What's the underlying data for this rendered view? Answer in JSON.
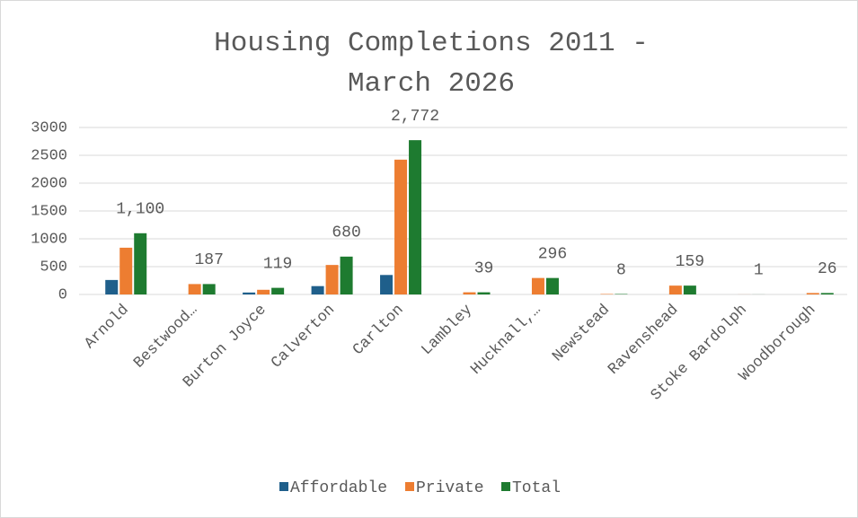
{
  "chart_data": {
    "type": "bar",
    "title": "Housing Completions 2011 - March 2026",
    "categories": [
      "Arnold",
      "Bestwood…",
      "Burton Joyce",
      "Calverton",
      "Carlton",
      "Lambley",
      "Hucknall,…",
      "Newstead",
      "Ravenshead",
      "Stoke Bardolph",
      "Woodborough"
    ],
    "series": [
      {
        "name": "Affordable",
        "color": "#1f5f8b",
        "values": [
          260,
          0,
          35,
          150,
          350,
          0,
          0,
          0,
          0,
          0,
          0
        ]
      },
      {
        "name": "Private",
        "color": "#ed7d31",
        "values": [
          840,
          187,
          84,
          530,
          2422,
          39,
          296,
          8,
          159,
          1,
          26
        ]
      },
      {
        "name": "Total",
        "color": "#1e7b30",
        "values": [
          1100,
          187,
          119,
          680,
          2772,
          39,
          296,
          8,
          159,
          1,
          26
        ],
        "value_labels": [
          "1,100",
          "187",
          "119",
          "680",
          "2,772",
          "39",
          "296",
          "8",
          "159",
          "1",
          "26"
        ]
      }
    ],
    "ylim": [
      0,
      3000
    ],
    "yticks": [
      0,
      500,
      1000,
      1500,
      2000,
      2500,
      3000
    ],
    "grid": true,
    "legend": "bottom"
  }
}
